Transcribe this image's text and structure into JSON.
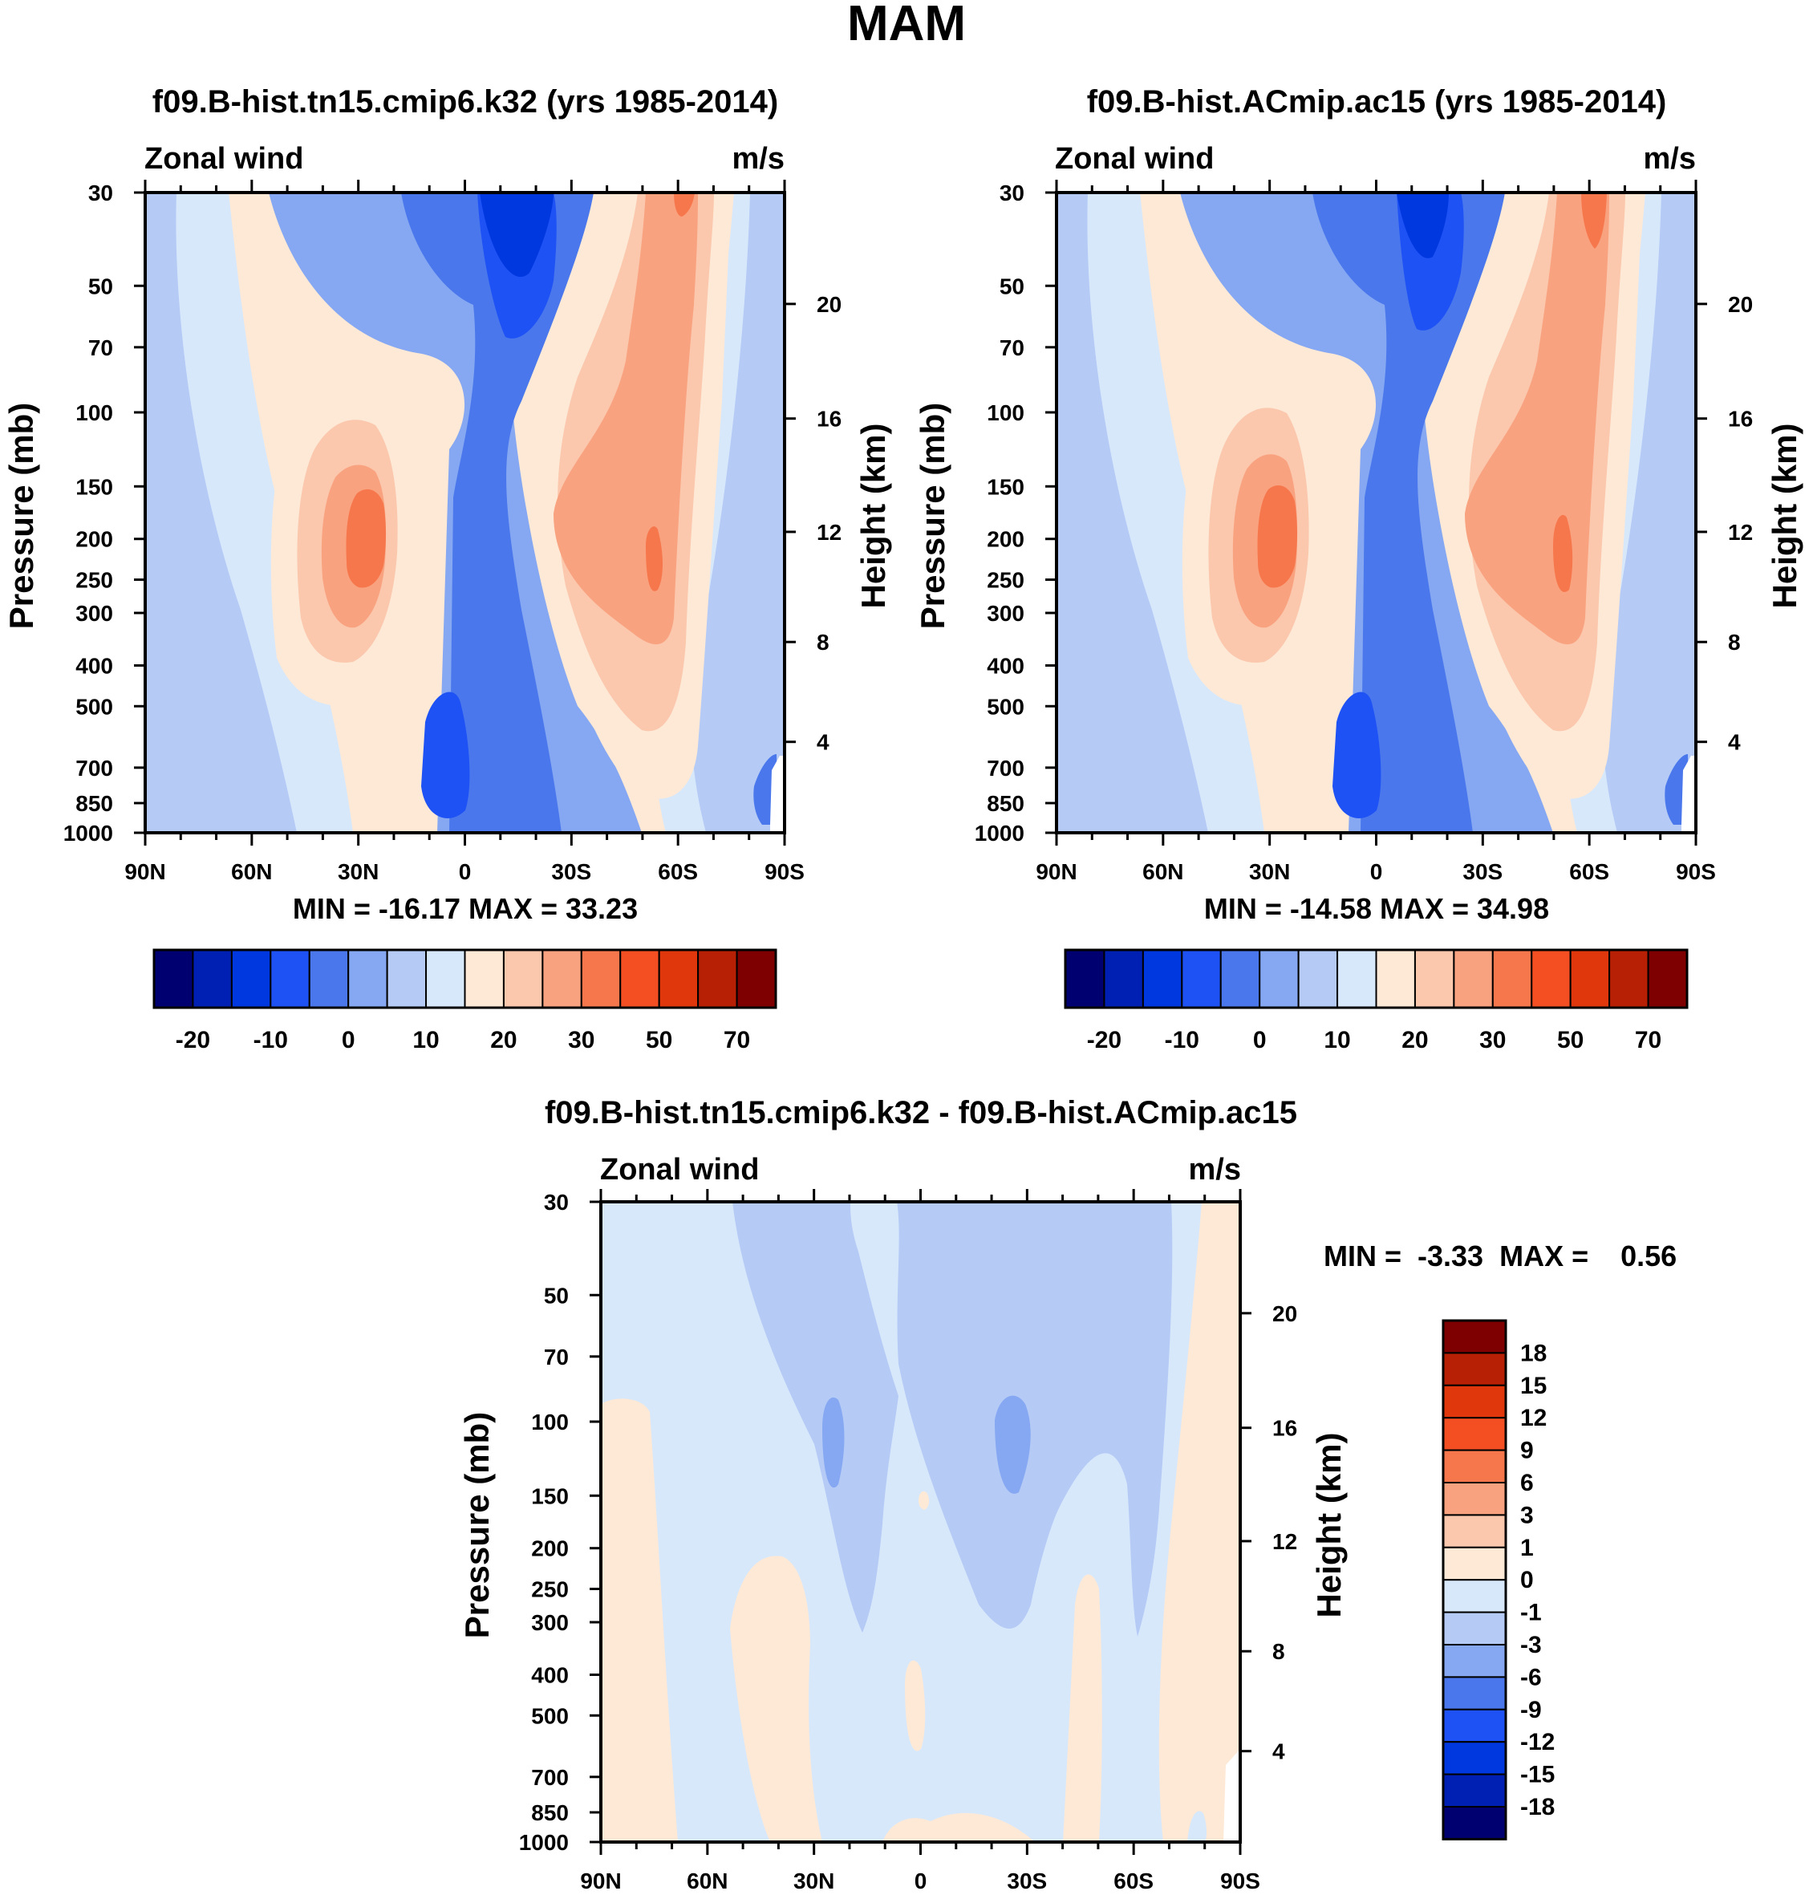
{
  "page_title": "MAM",
  "colors": {
    "abs": [
      "#000070",
      "#0020b4",
      "#0038e0",
      "#1f52f5",
      "#4a78ec",
      "#86a8f2",
      "#b5cbf6",
      "#d8e8fb",
      "#fde9d6",
      "#fbc7ad",
      "#f9a27f",
      "#f7774d",
      "#f34f22",
      "#e0380c",
      "#b82005",
      "#7e0000"
    ],
    "diff": [
      "#000070",
      "#0020b4",
      "#0038e0",
      "#1f52f5",
      "#4a78ec",
      "#86a8f2",
      "#b5cbf6",
      "#d8e8fb",
      "#fde9d6",
      "#fbc7ad",
      "#f9a27f",
      "#f7774d",
      "#f34f22",
      "#e0380c",
      "#b82005",
      "#7e0000"
    ]
  },
  "chart_data": [
    {
      "type": "contour",
      "title": "f09.B-hist.tn15.cmip6.k32 (yrs 1985-2014)",
      "left_label": "Zonal wind",
      "right_label": "m/s",
      "ylabel": "Pressure (mb)",
      "ylabel_right": "Height (km)",
      "x_ticks": [
        "90N",
        "60N",
        "30N",
        "0",
        "30S",
        "60S",
        "90S"
      ],
      "y_ticks": [
        "30",
        "50",
        "70",
        "100",
        "150",
        "200",
        "250",
        "300",
        "400",
        "500",
        "700",
        "850",
        "1000"
      ],
      "y_ticks_right": [
        "20",
        "16",
        "12",
        "8",
        "4"
      ],
      "stats": "MIN = -16.17  MAX =  33.23",
      "min": -16.17,
      "max": 33.23,
      "colorbar_labels": [
        "-20",
        "-10",
        "0",
        "10",
        "20",
        "30",
        "50",
        "70"
      ]
    },
    {
      "type": "contour",
      "title": "f09.B-hist.ACmip.ac15 (yrs 1985-2014)",
      "left_label": "Zonal wind",
      "right_label": "m/s",
      "ylabel": "Pressure (mb)",
      "ylabel_right": "Height (km)",
      "x_ticks": [
        "90N",
        "60N",
        "30N",
        "0",
        "30S",
        "60S",
        "90S"
      ],
      "y_ticks": [
        "30",
        "50",
        "70",
        "100",
        "150",
        "200",
        "250",
        "300",
        "400",
        "500",
        "700",
        "850",
        "1000"
      ],
      "y_ticks_right": [
        "20",
        "16",
        "12",
        "8",
        "4"
      ],
      "stats": "MIN = -14.58  MAX =  34.98",
      "min": -14.58,
      "max": 34.98,
      "colorbar_labels": [
        "-20",
        "-10",
        "0",
        "10",
        "20",
        "30",
        "50",
        "70"
      ]
    },
    {
      "type": "contour",
      "title": "f09.B-hist.tn15.cmip6.k32 - f09.B-hist.ACmip.ac15",
      "left_label": "Zonal wind",
      "right_label": "m/s",
      "ylabel": "Pressure (mb)",
      "ylabel_right": "Height (km)",
      "x_ticks": [
        "90N",
        "60N",
        "30N",
        "0",
        "30S",
        "60S",
        "90S"
      ],
      "y_ticks": [
        "30",
        "50",
        "70",
        "100",
        "150",
        "200",
        "250",
        "300",
        "400",
        "500",
        "700",
        "850",
        "1000"
      ],
      "y_ticks_right": [
        "20",
        "16",
        "12",
        "8",
        "4"
      ],
      "stats": "MIN =  -3.33  MAX =    0.56",
      "min": -3.33,
      "max": 0.56,
      "colorbar_labels": [
        "18",
        "15",
        "12",
        "9",
        "6",
        "3",
        "1",
        "0",
        "-1",
        "-3",
        "-6",
        "-9",
        "-12",
        "-15",
        "-18"
      ]
    }
  ]
}
